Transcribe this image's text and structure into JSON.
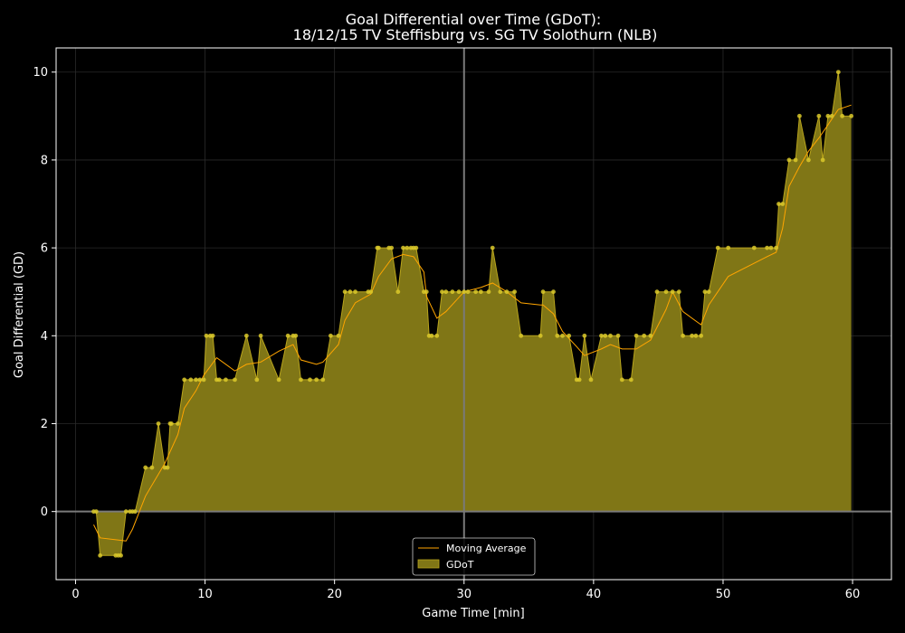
{
  "chart_data": {
    "type": "area",
    "title_line1": "Goal Differential over Time (GDoT):",
    "title_line2": "18/12/15 TV Steffisburg  vs.  SG TV Solothurn (NLB)",
    "xlabel": "Game Time [min]",
    "ylabel": "Goal Differential (GD)",
    "xlim": [
      -1.5,
      63
    ],
    "ylim": [
      -1.55,
      10.55
    ],
    "xticks": [
      0,
      10,
      20,
      30,
      40,
      50,
      60
    ],
    "yticks": [
      0,
      2,
      4,
      6,
      8,
      10
    ],
    "grid": true,
    "legend_position": "bottom-center",
    "vertical_line_x": 30,
    "colors": {
      "background": "#000000",
      "fill": "#807616",
      "gd_line": "#b8a41c",
      "markers": "#d9c82a",
      "moving_average": "#ffa500",
      "zero_line": "#7a7a7a",
      "half_line": "#7a7a7a",
      "text": "#ffffff"
    },
    "series": [
      {
        "name": "GDoT",
        "x": [
          1.4,
          1.6,
          1.9,
          3.1,
          3.3,
          3.5,
          3.9,
          4.2,
          4.4,
          4.6,
          5.4,
          5.9,
          6.4,
          6.9,
          7.1,
          7.3,
          7.4,
          7.9,
          8.4,
          8.9,
          9.3,
          9.6,
          9.9,
          10.1,
          10.4,
          10.6,
          10.9,
          11.1,
          11.6,
          12.3,
          13.2,
          14.0,
          14.3,
          15.7,
          16.4,
          16.8,
          17.0,
          17.4,
          18.1,
          18.6,
          19.1,
          19.7,
          20.3,
          20.8,
          21.2,
          21.6,
          22.6,
          22.8,
          23.3,
          23.4,
          24.2,
          24.4,
          24.9,
          25.3,
          25.6,
          25.9,
          26.1,
          26.3,
          26.9,
          27.1,
          27.3,
          27.5,
          27.9,
          28.3,
          28.6,
          29.1,
          29.6,
          30.0,
          30.3,
          30.9,
          31.3,
          31.9,
          32.2,
          32.8,
          33.3,
          33.9,
          34.4,
          35.9,
          36.1,
          36.9,
          37.2,
          37.6,
          38.1,
          38.7,
          38.9,
          39.3,
          39.8,
          40.6,
          40.9,
          41.3,
          41.9,
          42.2,
          42.9,
          43.3,
          43.9,
          44.4,
          44.9,
          45.6,
          46.1,
          46.6,
          46.9,
          47.6,
          47.9,
          48.3,
          48.6,
          48.9,
          49.6,
          50.4,
          52.4,
          53.4,
          53.7,
          54.1,
          54.3,
          54.6,
          55.1,
          55.6,
          55.9,
          56.6,
          57.4,
          57.7,
          58.1,
          58.4,
          58.9,
          59.2,
          59.9
        ],
        "y": [
          0,
          0,
          -1,
          -1,
          -1,
          -1,
          0,
          0,
          0,
          0,
          1,
          1,
          2,
          1,
          1,
          2,
          2,
          2,
          3,
          3,
          3,
          3,
          3,
          4,
          4,
          4,
          3,
          3,
          3,
          3,
          4,
          3,
          4,
          3,
          4,
          4,
          4,
          3,
          3,
          3,
          3,
          4,
          4,
          5,
          5,
          5,
          5,
          5,
          6,
          6,
          6,
          6,
          5,
          6,
          6,
          6,
          6,
          6,
          5,
          5,
          4,
          4,
          4,
          5,
          5,
          5,
          5,
          5,
          5,
          5,
          5,
          5,
          6,
          5,
          5,
          5,
          4,
          4,
          5,
          5,
          4,
          4,
          4,
          3,
          3,
          4,
          3,
          4,
          4,
          4,
          4,
          3,
          3,
          4,
          4,
          4,
          5,
          5,
          5,
          5,
          4,
          4,
          4,
          4,
          5,
          5,
          6,
          6,
          6,
          6,
          6,
          6,
          7,
          7,
          8,
          8,
          9,
          8,
          9,
          8,
          9,
          9,
          10,
          9,
          9
        ]
      },
      {
        "name": "Moving Average",
        "x": [
          1.4,
          1.9,
          3.9,
          4.4,
          5.4,
          6.9,
          7.9,
          8.4,
          9.3,
          9.9,
          10.9,
          12.3,
          13.2,
          14.3,
          15.7,
          16.8,
          17.4,
          18.6,
          19.1,
          20.3,
          20.8,
          21.6,
          22.8,
          23.4,
          24.4,
          25.3,
          26.1,
          26.9,
          27.1,
          27.9,
          28.6,
          30.0,
          31.3,
          32.2,
          33.3,
          34.4,
          35.9,
          36.1,
          36.9,
          37.6,
          38.7,
          39.3,
          40.6,
          41.3,
          42.2,
          43.3,
          44.4,
          45.6,
          46.1,
          46.9,
          48.3,
          48.9,
          50.4,
          53.4,
          54.1,
          54.6,
          55.1,
          55.9,
          56.6,
          57.4,
          58.1,
          58.9,
          59.9
        ],
        "y": [
          -0.3,
          -0.6,
          -0.67,
          -0.4,
          0.35,
          1.1,
          1.75,
          2.35,
          2.75,
          3.1,
          3.5,
          3.2,
          3.35,
          3.4,
          3.65,
          3.8,
          3.45,
          3.35,
          3.4,
          3.8,
          4.35,
          4.75,
          4.95,
          5.35,
          5.75,
          5.85,
          5.8,
          5.45,
          4.9,
          4.4,
          4.55,
          5.0,
          5.1,
          5.2,
          5.0,
          4.75,
          4.7,
          4.7,
          4.5,
          4.1,
          3.75,
          3.55,
          3.7,
          3.8,
          3.7,
          3.7,
          3.9,
          4.6,
          5.0,
          4.55,
          4.25,
          4.7,
          5.35,
          5.8,
          5.9,
          6.45,
          7.4,
          7.85,
          8.2,
          8.5,
          8.8,
          9.15,
          9.25
        ]
      }
    ]
  }
}
